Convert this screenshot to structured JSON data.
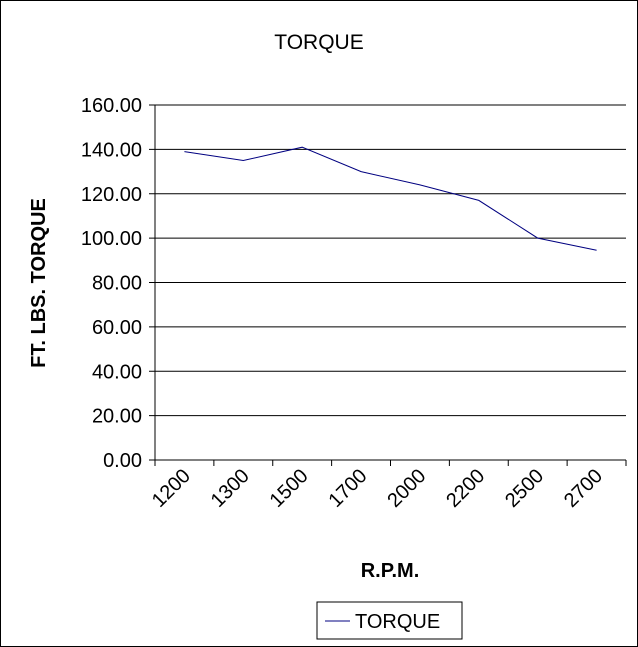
{
  "chart_data": {
    "type": "line",
    "title": "TORQUE",
    "xlabel": "R.P.M.",
    "ylabel": "FT. LBS. TORQUE",
    "categories": [
      "1200",
      "1300",
      "1500",
      "1700",
      "2000",
      "2200",
      "2500",
      "2700"
    ],
    "series": [
      {
        "name": "TORQUE",
        "values": [
          139,
          135,
          141,
          130,
          124,
          117,
          100,
          94.5
        ],
        "color": "#000080"
      }
    ],
    "ylim": [
      0,
      160
    ],
    "yticks": [
      "0.00",
      "20.00",
      "40.00",
      "60.00",
      "80.00",
      "100.00",
      "120.00",
      "140.00",
      "160.00"
    ],
    "grid": "horizontal major gridlines",
    "legend": {
      "position": "bottom",
      "entries": [
        "TORQUE"
      ]
    }
  }
}
